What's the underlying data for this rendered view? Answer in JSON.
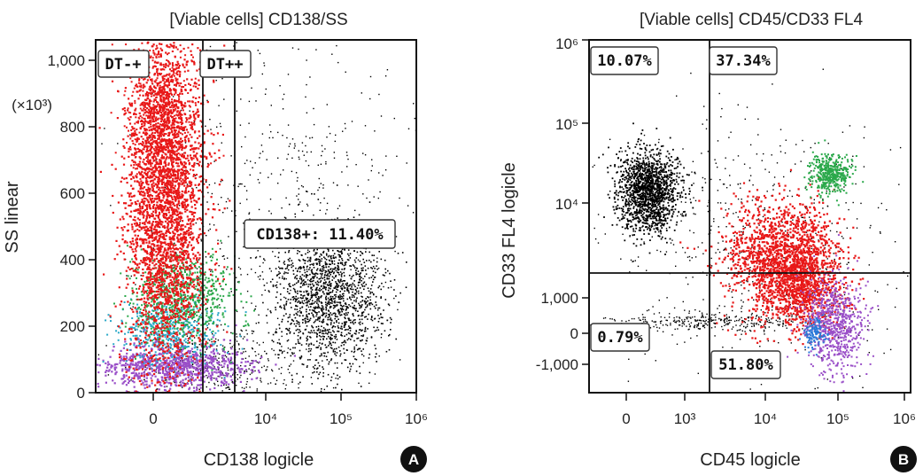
{
  "chart_data": [
    {
      "type": "scatter",
      "panel_letter": "A",
      "title": "[Viable cells] CD138/SS",
      "xlabel": "CD138 logicle",
      "ylabel": "SS linear",
      "y_unit": "(×10³)",
      "xscale": "logicle",
      "x_ticks": [
        "0",
        "10⁴",
        "10⁵",
        "10⁶"
      ],
      "y_ticks": [
        "0",
        "200",
        "400",
        "600",
        "800",
        "1,000"
      ],
      "ylim": [
        0,
        1050
      ],
      "gates": [
        {
          "label": "DT-+"
        },
        {
          "label": "DT++"
        },
        {
          "label": "CD138+: 11.40%"
        }
      ],
      "populations": [
        {
          "color": "#e81818"
        },
        {
          "color": "#2aa84a"
        },
        {
          "color": "#2aa8c8"
        },
        {
          "color": "#9a4fc8"
        },
        {
          "color": "#000000"
        }
      ]
    },
    {
      "type": "scatter",
      "panel_letter": "B",
      "title": "[Viable cells] CD45/CD33 FL4",
      "xlabel": "CD45 logicle",
      "ylabel": "CD33 FL4 logicle",
      "xscale": "logicle",
      "yscale": "logicle",
      "x_ticks": [
        "0",
        "10³",
        "10⁴",
        "10⁵",
        "10⁶"
      ],
      "y_ticks": [
        "10⁶",
        "10⁵",
        "10⁴",
        "1,000",
        "0",
        "-1,000"
      ],
      "quadrants": [
        {
          "label": "10.07%",
          "position": "top-left"
        },
        {
          "label": "37.34%",
          "position": "top-right"
        },
        {
          "label": "0.79%",
          "position": "bottom-left"
        },
        {
          "label": "51.80%",
          "position": "bottom-right"
        }
      ],
      "populations": [
        {
          "color": "#000000"
        },
        {
          "color": "#e81818"
        },
        {
          "color": "#2aa84a"
        },
        {
          "color": "#9a4fc8"
        },
        {
          "color": "#2a7ad8"
        }
      ]
    }
  ]
}
